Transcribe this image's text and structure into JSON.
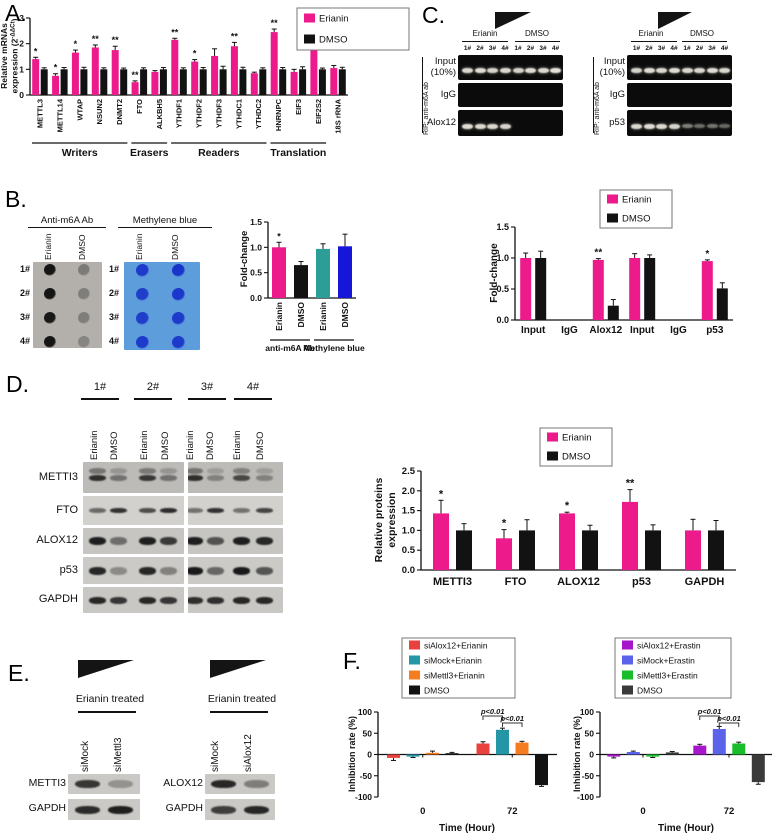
{
  "panel_a": {
    "label": "A."
  },
  "panel_b": {
    "label": "B.",
    "blots": [
      {
        "title": "Anti-m6A Ab",
        "bg": "#B3B0AB",
        "dot_color": "#0d0d0d",
        "columns": [
          "Erianin",
          "DMSO"
        ],
        "row_labels": [
          "1#",
          "2#",
          "3#",
          "4#"
        ],
        "dot_opacity": [
          [
            0.95,
            0.32
          ],
          [
            0.95,
            0.3
          ],
          [
            0.92,
            0.3
          ],
          [
            0.95,
            0.26
          ]
        ]
      },
      {
        "title": "Methylene blue",
        "bg": "#5E9DDB",
        "dot_color": "#1733C9",
        "columns": [
          "Erianin",
          "DMSO"
        ],
        "row_labels": [
          "1#",
          "2#",
          "3#",
          "4#"
        ],
        "dot_opacity": [
          [
            0.92,
            0.98
          ],
          [
            0.88,
            0.95
          ],
          [
            0.88,
            0.92
          ],
          [
            0.92,
            0.92
          ]
        ]
      }
    ]
  },
  "panel_c": {
    "label": "C.",
    "gels": [
      {
        "side_label": "RIP: anti-m6A ab",
        "treatments": [
          "Erianin",
          "DMSO"
        ],
        "lane_labels": [
          "1#",
          "2#",
          "3#",
          "4#",
          "1#",
          "2#",
          "3#",
          "4#"
        ],
        "rows": [
          {
            "lines": [
              "Input",
              "(10%)"
            ],
            "bands": [
              0.9,
              0.92,
              0.88,
              0.9,
              0.88,
              0.92,
              0.9,
              0.95
            ]
          },
          {
            "lines": [
              "IgG"
            ],
            "bands": [
              0,
              0,
              0,
              0,
              0,
              0,
              0,
              0
            ]
          },
          {
            "lines": [
              "Alox12"
            ],
            "bands": [
              0.92,
              0.9,
              0.9,
              0.88,
              0,
              0,
              0,
              0
            ]
          }
        ]
      },
      {
        "side_label": "RIP: anti-m6A ab",
        "treatments": [
          "Erianin",
          "DMSO"
        ],
        "lane_labels": [
          "1#",
          "2#",
          "3#",
          "4#",
          "1#",
          "2#",
          "3#",
          "4#"
        ],
        "rows": [
          {
            "lines": [
              "Input",
              "(10%)"
            ],
            "bands": [
              0.88,
              0.92,
              0.9,
              0.92,
              0.9,
              0.9,
              0.92,
              0.9
            ]
          },
          {
            "lines": [
              "IgG"
            ],
            "bands": [
              0,
              0,
              0,
              0,
              0,
              0,
              0,
              0
            ]
          },
          {
            "lines": [
              "p53"
            ],
            "bands": [
              0.9,
              0.92,
              0.9,
              0.88,
              0.5,
              0.42,
              0.46,
              0.4
            ]
          }
        ]
      }
    ]
  },
  "panel_d": {
    "label": "D.",
    "lane_groups": [
      "1#",
      "2#",
      "3#",
      "4#"
    ],
    "treatments": [
      "Erianin",
      "DMSO",
      "Erianin",
      "DMSO",
      "Erianin",
      "DMSO",
      "Erianin",
      "DMSO"
    ],
    "rows": [
      {
        "label": "METTI3",
        "bands": [
          0.85,
          0.45,
          0.8,
          0.45,
          0.85,
          0.35,
          0.7,
          0.35
        ]
      },
      {
        "label": "FTO",
        "bands": [
          0.55,
          0.85,
          0.7,
          0.88,
          0.5,
          0.85,
          0.5,
          0.75
        ]
      },
      {
        "label": "ALOX12",
        "bands": [
          0.95,
          0.5,
          0.95,
          0.8,
          0.95,
          0.65,
          0.95,
          0.9
        ]
      },
      {
        "label": "p53",
        "bands": [
          0.9,
          0.35,
          0.9,
          0.4,
          0.98,
          0.55,
          0.98,
          0.65
        ]
      },
      {
        "label": "GAPDH",
        "bands": [
          0.9,
          0.82,
          0.9,
          0.82,
          0.86,
          0.86,
          0.9,
          0.9
        ]
      }
    ]
  },
  "panel_e": {
    "label": "E.",
    "blocks": [
      {
        "title": "Erianin treated",
        "columns": [
          "siMock",
          "siMettl3"
        ],
        "rows": [
          {
            "label": "METTI3",
            "bands": [
              0.82,
              0.3
            ]
          },
          {
            "label": "GAPDH",
            "bands": [
              0.88,
              0.95
            ]
          }
        ]
      },
      {
        "title": "Erianin treated",
        "columns": [
          "siMock",
          "siAlox12"
        ],
        "rows": [
          {
            "label": "ALOX12",
            "bands": [
              0.9,
              0.42
            ]
          },
          {
            "label": "GAPDH",
            "bands": [
              0.78,
              0.9
            ]
          }
        ]
      }
    ]
  },
  "panel_f": {
    "label": "F."
  },
  "chart_data": [
    {
      "id": "a",
      "type": "bar",
      "ylabel": "Relative mRNAs\nexpression (2^{-ΔΔCt})",
      "ylim": [
        0,
        3
      ],
      "yticks": [
        0,
        1,
        2,
        3
      ],
      "tick_dec": 0,
      "categories": [
        "METTL3",
        "METTL14",
        "WTAP",
        "NSUN2",
        "DNMT2",
        "FTO",
        "ALKBH5",
        "YTHDF1",
        "YTHDF2",
        "YTHDF3",
        "YTHDC1",
        "YTHDC2",
        "HNRNPC",
        "EIF3",
        "EIF2S2",
        "18S rRNA"
      ],
      "series": [
        {
          "name": "Erianin",
          "color": "#EC1A8B",
          "values": [
            1.4,
            0.75,
            1.65,
            1.85,
            1.75,
            0.5,
            0.9,
            2.15,
            1.3,
            1.52,
            1.9,
            0.85,
            2.45,
            0.9,
            2.0,
            1.05
          ],
          "errors": [
            0.07,
            0.08,
            0.1,
            0.1,
            0.15,
            0.05,
            0.05,
            0.06,
            0.08,
            0.28,
            0.15,
            0.04,
            0.12,
            0.1,
            0.08,
            0.1
          ]
        },
        {
          "name": "DMSO",
          "color": "#121212",
          "values": [
            1,
            1,
            1,
            1,
            1,
            1,
            1,
            1,
            1,
            1,
            1,
            1,
            1,
            1,
            1,
            1
          ],
          "errors": [
            0.06,
            0.07,
            0.08,
            0.06,
            0.05,
            0.06,
            0.07,
            0.06,
            0.07,
            0.12,
            0.08,
            0.06,
            0.07,
            0.1,
            0.05,
            0.08
          ]
        }
      ],
      "sig": [
        "*",
        "*",
        "*",
        "**",
        "**",
        "**",
        "",
        "**",
        "*",
        "",
        "**",
        "",
        "**",
        "",
        "**",
        ""
      ],
      "legend": [
        {
          "label": "Erianin",
          "color": "#EC1A8B"
        },
        {
          "label": "DMSO",
          "color": "#121212"
        }
      ],
      "brackets": [
        {
          "from": 0,
          "to": 4,
          "label": "Writers"
        },
        {
          "from": 5,
          "to": 6,
          "label": "Erasers"
        },
        {
          "from": 7,
          "to": 11,
          "label": "Readers"
        },
        {
          "from": 12,
          "to": 14,
          "label": "Translation"
        }
      ]
    },
    {
      "id": "b",
      "type": "bar",
      "ylabel": "Fold-change",
      "ylim": [
        0,
        1.5
      ],
      "yticks": [
        0,
        0.5,
        1,
        1.5
      ],
      "tick_dec": 1,
      "categories": [
        "Erianin",
        "DMSO",
        "Erianin",
        "DMSO"
      ],
      "series": [
        {
          "name": "Fold-change",
          "colors": [
            "#EC1A8B",
            "#121212",
            "#2D9D98",
            "#1616D9"
          ],
          "values": [
            1.0,
            0.65,
            0.97,
            1.02
          ],
          "errors": [
            0.1,
            0.07,
            0.1,
            0.24
          ]
        }
      ],
      "sig": [
        "*",
        "",
        "",
        ""
      ],
      "brackets": [
        {
          "from": 0,
          "to": 1,
          "label": "anti-m6A Ab"
        },
        {
          "from": 2,
          "to": 3,
          "label": "Methylene blue"
        }
      ]
    },
    {
      "id": "c",
      "type": "bar",
      "ylabel": "Fold-change",
      "ylim": [
        0,
        1.5
      ],
      "yticks": [
        0,
        0.5,
        1,
        1.5
      ],
      "tick_dec": 1,
      "categories": [
        "Input",
        "IgG",
        "Alox12",
        "Input",
        "IgG",
        "p53"
      ],
      "series": [
        {
          "name": "Erianin",
          "color": "#EC1A8B",
          "values": [
            1.0,
            0,
            0.97,
            1.0,
            0,
            0.95
          ],
          "errors": [
            0.08,
            0,
            0.02,
            0.07,
            0,
            0.02
          ]
        },
        {
          "name": "DMSO",
          "color": "#121212",
          "values": [
            1.0,
            0,
            0.23,
            1.0,
            0,
            0.51
          ],
          "errors": [
            0.11,
            0,
            0.1,
            0.05,
            0,
            0.09
          ]
        }
      ],
      "sig": [
        "",
        "",
        "**",
        "",
        "",
        "*"
      ],
      "legend": [
        {
          "label": "Erianin",
          "color": "#EC1A8B"
        },
        {
          "label": "DMSO",
          "color": "#121212"
        }
      ]
    },
    {
      "id": "d",
      "type": "bar",
      "ylabel": "Relative proteins\nexpression",
      "ylim": [
        0,
        2.5
      ],
      "yticks": [
        0,
        0.5,
        1,
        1.5,
        2,
        2.5
      ],
      "tick_dec": 1,
      "categories": [
        "METTI3",
        "FTO",
        "ALOX12",
        "p53",
        "GAPDH"
      ],
      "series": [
        {
          "name": "Erianin",
          "color": "#EC1A8B",
          "values": [
            1.43,
            0.8,
            1.43,
            1.72,
            1.0
          ],
          "errors": [
            0.33,
            0.22,
            0.03,
            0.31,
            0.28
          ]
        },
        {
          "name": "DMSO",
          "color": "#121212",
          "values": [
            1.0,
            1.0,
            1.0,
            1.0,
            1.0
          ],
          "errors": [
            0.17,
            0.27,
            0.13,
            0.14,
            0.25
          ]
        }
      ],
      "sig": [
        "*",
        "*",
        "*",
        "**",
        ""
      ],
      "legend": [
        {
          "label": "Erianin",
          "color": "#EC1A8B"
        },
        {
          "label": "DMSO",
          "color": "#121212"
        }
      ]
    },
    {
      "id": "f1",
      "type": "bar",
      "ylabel": "Inhibition rate (%)",
      "xlabel": "Time (Hour)",
      "ylim": [
        -100,
        100
      ],
      "yticks": [
        -100,
        -50,
        0,
        50,
        100
      ],
      "tick_dec": 0,
      "x_axis_at": 0,
      "categories": [
        "0",
        "72"
      ],
      "series": [
        {
          "name": "siAlox12+Erianin",
          "color": "#E9413E",
          "values": [
            -8,
            26
          ],
          "errors": [
            6,
            4
          ]
        },
        {
          "name": "siMock+Erianin",
          "color": "#2596A6",
          "values": [
            -5,
            58
          ],
          "errors": [
            2,
            4
          ]
        },
        {
          "name": "siMettl3+Erianin",
          "color": "#F67C20",
          "values": [
            4,
            28
          ],
          "errors": [
            4,
            3
          ]
        },
        {
          "name": "DMSO",
          "color": "#121212",
          "values": [
            3,
            -72
          ],
          "errors": [
            2,
            3
          ]
        }
      ],
      "legend": [
        {
          "label": "siAlox12+Erianin",
          "color": "#E9413E"
        },
        {
          "label": "siMock+Erianin",
          "color": "#2596A6"
        },
        {
          "label": "siMettl3+Erianin",
          "color": "#F67C20"
        },
        {
          "label": "DMSO",
          "color": "#121212"
        }
      ],
      "annotations": [
        {
          "group": 1,
          "s1": 0,
          "s2": 1,
          "level": 0,
          "label": "p<0.01"
        },
        {
          "group": 1,
          "s1": 1,
          "s2": 2,
          "level": 1,
          "label": "p<0.01"
        }
      ]
    },
    {
      "id": "f2",
      "type": "bar",
      "ylabel": "Inhibition rate (%)",
      "xlabel": "Time (Hour)",
      "ylim": [
        -100,
        100
      ],
      "yticks": [
        -100,
        -50,
        0,
        50,
        100
      ],
      "tick_dec": 0,
      "x_axis_at": 0,
      "categories": [
        "0",
        "72"
      ],
      "series": [
        {
          "name": "siAlox12+Erastin",
          "color": "#A816CB",
          "values": [
            -5,
            21
          ],
          "errors": [
            3,
            3
          ]
        },
        {
          "name": "siMock+Erastin",
          "color": "#5A63EA",
          "values": [
            6,
            60
          ],
          "errors": [
            2,
            6
          ]
        },
        {
          "name": "siMettl3+Erastin",
          "color": "#17BD2B",
          "values": [
            -5,
            26
          ],
          "errors": [
            2,
            3
          ]
        },
        {
          "name": "DMSO",
          "color": "#3A3A3A",
          "values": [
            5,
            -65
          ],
          "errors": [
            2,
            5
          ]
        }
      ],
      "legend": [
        {
          "label": "siAlox12+Erastin",
          "color": "#A816CB"
        },
        {
          "label": "siMock+Erastin",
          "color": "#5A63EA"
        },
        {
          "label": "siMettl3+Erastin",
          "color": "#17BD2B"
        },
        {
          "label": "DMSO",
          "color": "#3A3A3A"
        }
      ],
      "annotations": [
        {
          "group": 1,
          "s1": 0,
          "s2": 1,
          "level": 0,
          "label": "p<0.01"
        },
        {
          "group": 1,
          "s1": 1,
          "s2": 2,
          "level": 1,
          "label": "p<0.01"
        }
      ]
    }
  ]
}
